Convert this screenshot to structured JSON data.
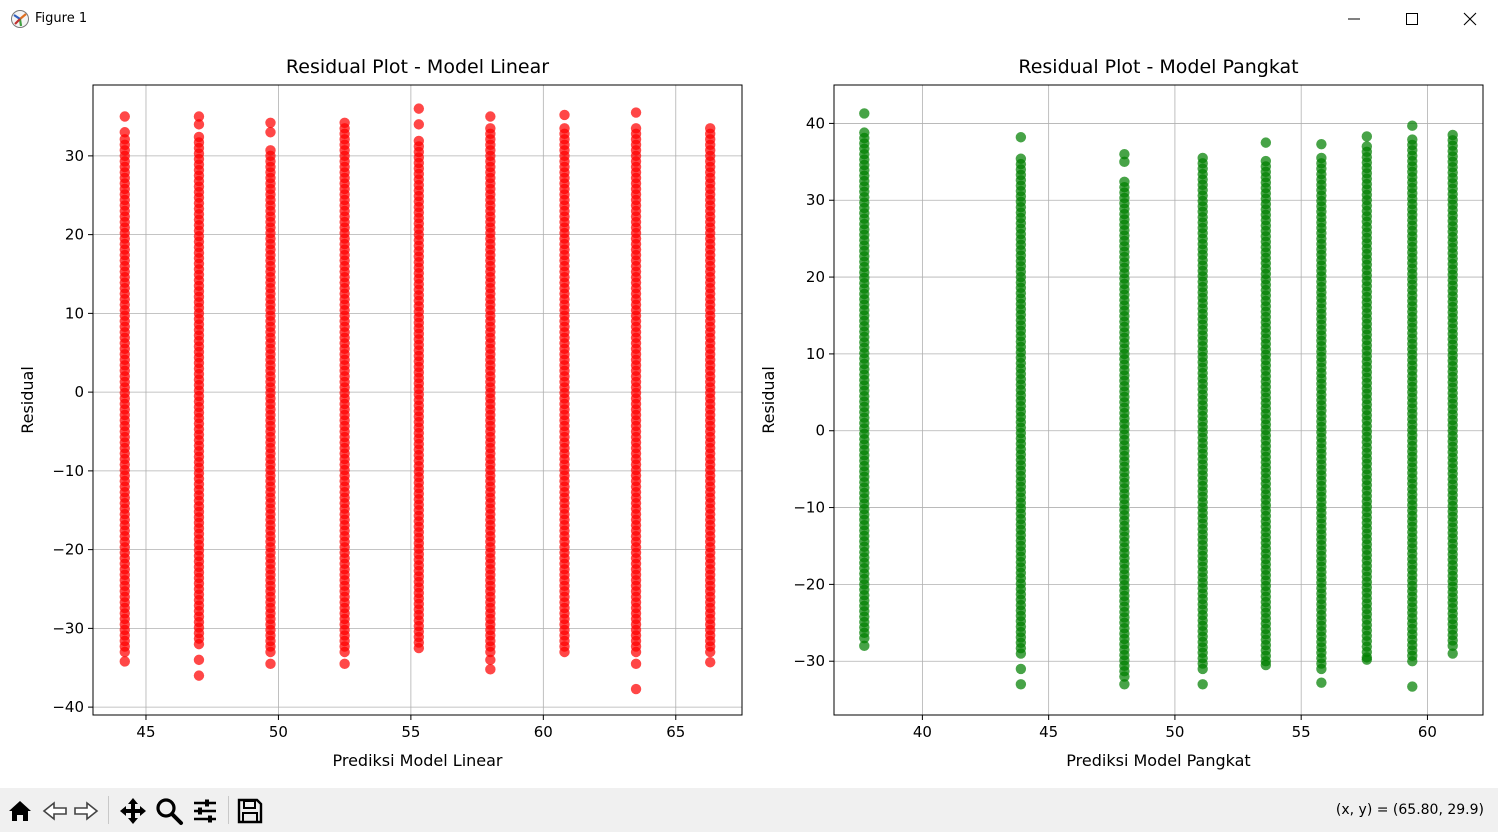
{
  "window": {
    "title": "Figure 1",
    "icons": [
      "matplotlib-icon",
      "minimize-icon",
      "maximize-icon",
      "close-icon"
    ]
  },
  "toolbar": {
    "tools": [
      "home-icon",
      "back-icon",
      "forward-icon",
      "pan-icon",
      "zoom-icon",
      "configure-subplots-icon",
      "save-icon"
    ],
    "coords": "(x, y) = (65.80, 29.9)"
  },
  "chart_data": [
    {
      "type": "scatter",
      "title": "Residual Plot - Model Linear",
      "xlabel": "Prediksi Model Linear",
      "ylabel": "Residual",
      "xlim": [
        43.0,
        67.5
      ],
      "ylim": [
        -41.0,
        39.0
      ],
      "xticks": [
        45,
        50,
        55,
        60,
        65
      ],
      "yticks": [
        -40,
        -30,
        -20,
        -10,
        0,
        10,
        20,
        30
      ],
      "xtick_labels": [
        "45",
        "50",
        "55",
        "60",
        "65"
      ],
      "ytick_labels": [
        "−40",
        "−30",
        "−20",
        "−10",
        "0",
        "10",
        "20",
        "30"
      ],
      "grid": true,
      "color": "#ff0000",
      "columns": [
        {
          "x": 44.2,
          "ymin": -33.0,
          "ymax": 32.5,
          "extras": [
            35.0,
            33.0,
            -34.2
          ]
        },
        {
          "x": 47.0,
          "ymin": -32.0,
          "ymax": 33.0,
          "extras": [
            35.0,
            34.0,
            -34.0,
            -36.0
          ]
        },
        {
          "x": 49.7,
          "ymin": -33.0,
          "ymax": 31.0,
          "extras": [
            34.2,
            33.0,
            -34.5
          ]
        },
        {
          "x": 52.5,
          "ymin": -33.0,
          "ymax": 34.5,
          "extras": [
            -34.5
          ]
        },
        {
          "x": 55.3,
          "ymin": -32.5,
          "ymax": 32.0,
          "extras": [
            36.0,
            34.0
          ]
        },
        {
          "x": 58.0,
          "ymin": -33.0,
          "ymax": 34.0,
          "extras": [
            35.0,
            -34.0,
            -35.2
          ]
        },
        {
          "x": 60.8,
          "ymin": -33.0,
          "ymax": 34.0,
          "extras": [
            35.2
          ]
        },
        {
          "x": 63.5,
          "ymin": -33.0,
          "ymax": 34.0,
          "extras": [
            35.5,
            -34.5,
            -37.7
          ]
        },
        {
          "x": 66.3,
          "ymin": -33.0,
          "ymax": 33.5,
          "extras": [
            -34.3
          ]
        }
      ]
    },
    {
      "type": "scatter",
      "title": "Residual Plot - Model Pangkat",
      "xlabel": "Prediksi Model Pangkat",
      "ylabel": "Residual",
      "xlim": [
        36.5,
        62.2
      ],
      "ylim": [
        -37.0,
        45.0
      ],
      "xticks": [
        40,
        45,
        50,
        55,
        60
      ],
      "yticks": [
        -30,
        -20,
        -10,
        0,
        10,
        20,
        30,
        40
      ],
      "xtick_labels": [
        "40",
        "45",
        "50",
        "55",
        "60"
      ],
      "ytick_labels": [
        "−30",
        "−20",
        "−10",
        "0",
        "10",
        "20",
        "30",
        "40"
      ],
      "grid": true,
      "color": "#008000",
      "columns": [
        {
          "x": 37.7,
          "ymin": -27.0,
          "ymax": 39.0,
          "extras": [
            41.3,
            -28.0
          ]
        },
        {
          "x": 43.9,
          "ymin": -29.0,
          "ymax": 36.0,
          "extras": [
            38.2,
            -31.0,
            -33.0
          ]
        },
        {
          "x": 48.0,
          "ymin": -32.0,
          "ymax": 33.0,
          "extras": [
            36.0,
            35.0,
            -33.0
          ]
        },
        {
          "x": 51.1,
          "ymin": -31.0,
          "ymax": 36.0,
          "extras": [
            -33.0
          ]
        },
        {
          "x": 53.6,
          "ymin": -30.0,
          "ymax": 35.5,
          "extras": [
            37.5,
            -30.5
          ]
        },
        {
          "x": 55.8,
          "ymin": -31.0,
          "ymax": 36.0,
          "extras": [
            37.3,
            -32.8
          ]
        },
        {
          "x": 57.6,
          "ymin": -29.5,
          "ymax": 37.0,
          "extras": [
            38.3,
            -29.8
          ]
        },
        {
          "x": 59.4,
          "ymin": -30.0,
          "ymax": 38.0,
          "extras": [
            39.7,
            -33.3
          ]
        },
        {
          "x": 61.0,
          "ymin": -28.0,
          "ymax": 39.0,
          "extras": [
            -29.0
          ]
        }
      ]
    }
  ]
}
